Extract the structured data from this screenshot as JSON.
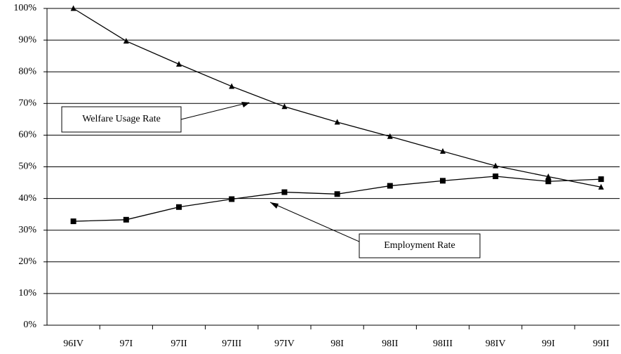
{
  "chart_data": {
    "type": "line",
    "categories": [
      "96IV",
      "97I",
      "97II",
      "97III",
      "97IV",
      "98I",
      "98II",
      "98III",
      "98IV",
      "99I",
      "99II"
    ],
    "series": [
      {
        "name": "Welfare Usage Rate",
        "color": "#000000",
        "marker": "triangle",
        "values": [
          100,
          89.7,
          82.4,
          75.4,
          69.0,
          64.1,
          59.6,
          54.9,
          50.3,
          46.9,
          43.6
        ]
      },
      {
        "name": "Employment Rate",
        "color": "#000000",
        "marker": "square",
        "values": [
          32.8,
          33.3,
          37.3,
          39.8,
          42.0,
          41.4,
          44.0,
          45.6,
          47.0,
          45.4,
          46.1
        ]
      }
    ],
    "ylim": [
      0,
      100
    ],
    "yticks": [
      {
        "value": 0,
        "label": "0%"
      },
      {
        "value": 10,
        "label": "10%"
      },
      {
        "value": 20,
        "label": "20%"
      },
      {
        "value": 30,
        "label": "30%"
      },
      {
        "value": 40,
        "label": "40%"
      },
      {
        "value": 50,
        "label": "50%"
      },
      {
        "value": 60,
        "label": "60%"
      },
      {
        "value": 70,
        "label": "70%"
      },
      {
        "value": 80,
        "label": "80%"
      },
      {
        "value": 90,
        "label": "90%"
      },
      {
        "value": 100,
        "label": "100%"
      }
    ],
    "grid": true
  }
}
